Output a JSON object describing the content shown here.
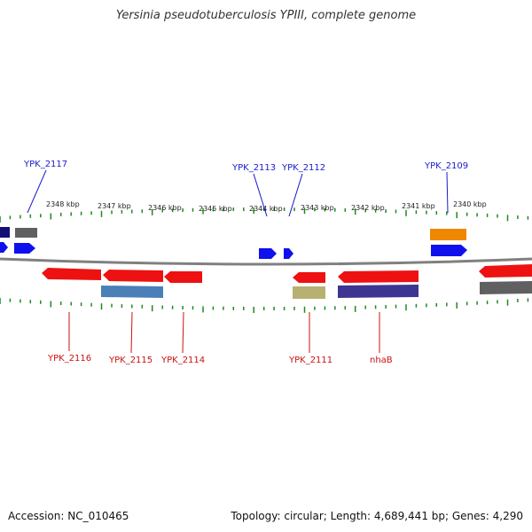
{
  "title": "Yersinia pseudotuberculosis YPIII, complete genome",
  "footer": {
    "accession": "Accession: NC_010465",
    "summary": "Topology: circular; Length: 4,689,441 bp; Genes: 4,290"
  },
  "scale_labels": [
    "2348 kbp",
    "2347 kbp",
    "2346 kbp",
    "2345 kbp",
    "2344 kbp",
    "2343 kbp",
    "2342 kbp",
    "2341 kbp",
    "2340 kbp"
  ],
  "gene_labels_top": [
    "YPK_2117",
    "YPK_2113",
    "YPK_2112",
    "YPK_2109"
  ],
  "gene_labels_bottom": [
    "YPK_2116",
    "YPK_2115",
    "YPK_2114",
    "YPK_2111",
    "nhaB"
  ],
  "colors": {
    "forward_cds": "#1010ee",
    "reverse_cds": "#ee1111",
    "backbone": "#808080",
    "tick": "#228822",
    "label_top": "#1a1acc",
    "label_bottom": "#cc1111",
    "orange": "#ee8800",
    "steelblue": "#4a7fb8",
    "olive": "#b8b070",
    "navy": "#3d3592",
    "darknavy": "#111177",
    "gray": "#606060"
  }
}
